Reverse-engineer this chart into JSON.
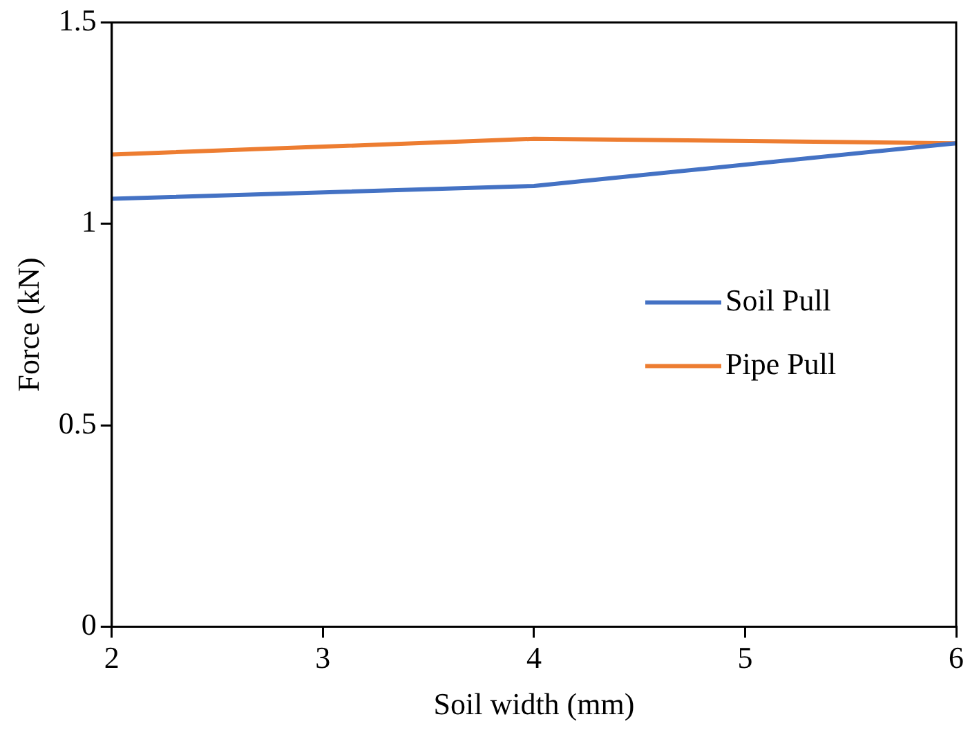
{
  "chart_data": {
    "type": "line",
    "xlabel": "Soil width (mm)",
    "ylabel": "Force (kN)",
    "x": [
      2,
      4,
      6
    ],
    "series": [
      {
        "name": "Soil Pull",
        "color": "#4472c4",
        "values": [
          1.062,
          1.094,
          1.2
        ]
      },
      {
        "name": "Pipe Pull",
        "color": "#ed7d31",
        "values": [
          1.172,
          1.211,
          1.2
        ]
      }
    ],
    "xlim": [
      2,
      6
    ],
    "xticks": [
      2,
      3,
      4,
      5,
      6
    ],
    "ylim": [
      0,
      1.5
    ],
    "yticks": [
      0,
      0.5,
      1,
      1.5
    ],
    "grid": false,
    "legend": "right",
    "marker": "none",
    "line_style": "solid"
  }
}
